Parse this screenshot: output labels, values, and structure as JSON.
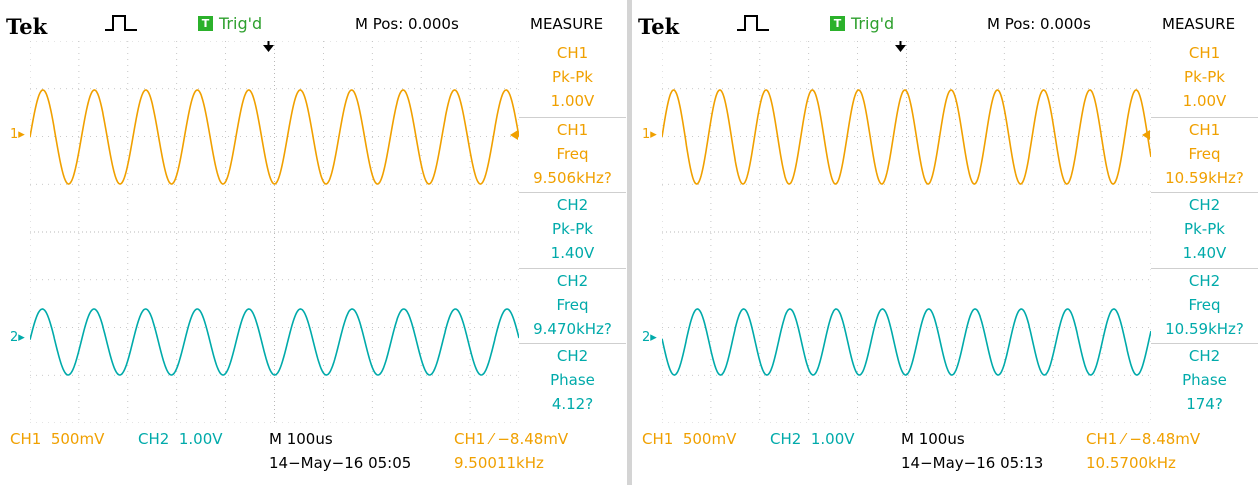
{
  "colors": {
    "ch1": "#f0a000",
    "ch2": "#00aaaa",
    "trig_badge": "#2bb12b",
    "grid": "#b8b8b8"
  },
  "screens": [
    {
      "brand": "Tek",
      "acquire_icon": "pulse-icon",
      "trigger_badge": "T",
      "trigger_status": "Trig'd",
      "m_pos": "M Pos: 0.000s",
      "measure_title": "MEASURE",
      "ch1_marker": "1",
      "ch2_marker": "2",
      "measurements": [
        {
          "source": "CH1",
          "type": "Pk-Pk",
          "value": "1.00V"
        },
        {
          "source": "CH1",
          "type": "Freq",
          "value": "9.506kHz?"
        },
        {
          "source": "CH2",
          "type": "Pk-Pk",
          "value": "1.40V"
        },
        {
          "source": "CH2",
          "type": "Freq",
          "value": "9.470kHz?"
        },
        {
          "source": "CH2",
          "type": "Phase",
          "value": "4.12?"
        }
      ],
      "ch1_scale": "CH1  500mV",
      "ch2_scale": "CH2  1.00V",
      "timebase": "M 100us",
      "trigger_info": "CH1 ⁄ −8.48mV",
      "datetime": "14−May−16 05:05",
      "trigger_freq": "9.50011kHz",
      "waveform": {
        "ch1_cycles": 9.5,
        "ch2_cycles": 9.47,
        "ch1_phase": 0.0,
        "ch2_phase": 0.07
      }
    },
    {
      "brand": "Tek",
      "acquire_icon": "pulse-icon",
      "trigger_badge": "T",
      "trigger_status": "Trig'd",
      "m_pos": "M Pos: 0.000s",
      "measure_title": "MEASURE",
      "ch1_marker": "1",
      "ch2_marker": "2",
      "measurements": [
        {
          "source": "CH1",
          "type": "Pk-Pk",
          "value": "1.00V"
        },
        {
          "source": "CH1",
          "type": "Freq",
          "value": "10.59kHz?"
        },
        {
          "source": "CH2",
          "type": "Pk-Pk",
          "value": "1.40V"
        },
        {
          "source": "CH2",
          "type": "Freq",
          "value": "10.59kHz?"
        },
        {
          "source": "CH2",
          "type": "Phase",
          "value": "174?"
        }
      ],
      "ch1_scale": "CH1  500mV",
      "ch2_scale": "CH2  1.00V",
      "timebase": "M 100us",
      "trigger_info": "CH1 ⁄ −8.48mV",
      "datetime": "14−May−16 05:13",
      "trigger_freq": "10.5700kHz",
      "waveform": {
        "ch1_cycles": 10.57,
        "ch2_cycles": 10.57,
        "ch1_phase": 0.0,
        "ch2_phase": 3.04
      }
    }
  ]
}
